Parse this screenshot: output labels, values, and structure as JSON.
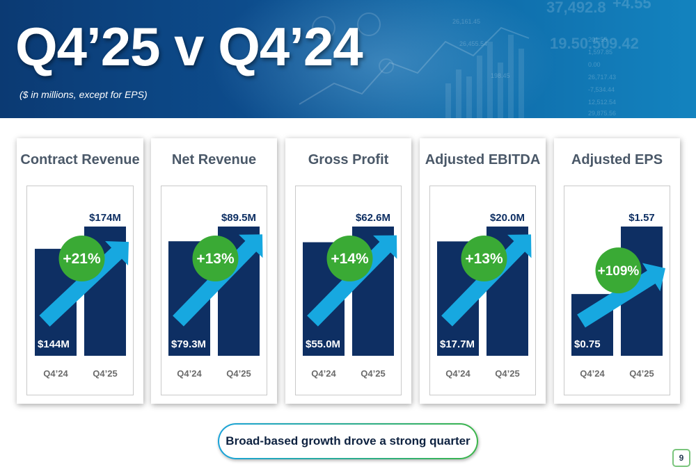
{
  "slide": {
    "title": "Q4’25 v Q4’24",
    "subtitle": "($ in millions, except for EPS)",
    "footer": "Broad-based growth drove a strong quarter",
    "page_number": "9"
  },
  "colors": {
    "bar": "#0e2f63",
    "arrow": "#17a8e0",
    "badge": "#3aaa35",
    "header": "#0d4c8c"
  },
  "chart_data": [
    {
      "type": "bar",
      "title": "Contract Revenue",
      "categories": [
        "Q4’24",
        "Q4’25"
      ],
      "values": [
        144,
        174
      ],
      "value_labels": [
        "$144M",
        "$174M"
      ],
      "change": "+21%",
      "unit": "$M"
    },
    {
      "type": "bar",
      "title": "Net Revenue",
      "categories": [
        "Q4’24",
        "Q4’25"
      ],
      "values": [
        79.3,
        89.5
      ],
      "value_labels": [
        "$79.3M",
        "$89.5M"
      ],
      "change": "+13%",
      "unit": "$M"
    },
    {
      "type": "bar",
      "title": "Gross Profit",
      "categories": [
        "Q4’24",
        "Q4’25"
      ],
      "values": [
        55.0,
        62.6
      ],
      "value_labels": [
        "$55.0M",
        "$62.6M"
      ],
      "change": "+14%",
      "unit": "$M"
    },
    {
      "type": "bar",
      "title": "Adjusted EBITDA",
      "categories": [
        "Q4’24",
        "Q4’25"
      ],
      "values": [
        17.7,
        20.0
      ],
      "value_labels": [
        "$17.7M",
        "$20.0M"
      ],
      "change": "+13%",
      "unit": "$M"
    },
    {
      "type": "bar",
      "title": "Adjusted EPS",
      "categories": [
        "Q4’24",
        "Q4’25"
      ],
      "values": [
        0.75,
        1.57
      ],
      "value_labels": [
        "$0.75",
        "$1.57"
      ],
      "change": "+109%",
      "unit": "$"
    }
  ]
}
